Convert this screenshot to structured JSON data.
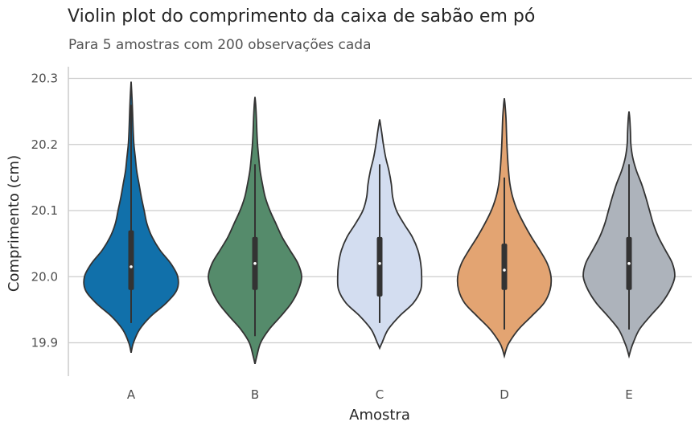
{
  "chart_data": {
    "type": "violin",
    "title": "Violin plot do comprimento da caixa de sabão em pó",
    "subtitle": "Para 5 amostras com 200 observações cada",
    "xlabel": "Amostra",
    "ylabel": "Comprimento (cm)",
    "ylim": [
      19.845,
      20.32
    ],
    "yticks": [
      "19.9",
      "20.0",
      "20.1",
      "20.2",
      "20.3"
    ],
    "grid": "horizontal",
    "categories": [
      "A",
      "B",
      "C",
      "D",
      "E"
    ],
    "series": [
      {
        "category": "A",
        "color": "#1170aa",
        "min": 19.885,
        "max": 20.295,
        "whisker_low": 19.93,
        "whisker_high": 20.26,
        "q1": 19.98,
        "median": 20.015,
        "q3": 20.07,
        "density": [
          [
            19.885,
            0.0
          ],
          [
            19.9,
            0.05
          ],
          [
            19.92,
            0.18
          ],
          [
            19.94,
            0.42
          ],
          [
            19.96,
            0.75
          ],
          [
            19.98,
            0.98
          ],
          [
            20.0,
            1.0
          ],
          [
            20.02,
            0.85
          ],
          [
            20.04,
            0.62
          ],
          [
            20.06,
            0.45
          ],
          [
            20.08,
            0.34
          ],
          [
            20.1,
            0.28
          ],
          [
            20.12,
            0.22
          ],
          [
            20.14,
            0.17
          ],
          [
            20.16,
            0.12
          ],
          [
            20.18,
            0.09
          ],
          [
            20.2,
            0.06
          ],
          [
            20.22,
            0.045
          ],
          [
            20.24,
            0.035
          ],
          [
            20.26,
            0.025
          ],
          [
            20.28,
            0.012
          ],
          [
            20.295,
            0.0
          ]
        ]
      },
      {
        "category": "B",
        "color": "#558b6b",
        "min": 19.868,
        "max": 20.272,
        "whisker_low": 19.91,
        "whisker_high": 20.17,
        "q1": 19.98,
        "median": 20.02,
        "q3": 20.06,
        "density": [
          [
            19.868,
            0.0
          ],
          [
            19.88,
            0.04
          ],
          [
            19.9,
            0.12
          ],
          [
            19.92,
            0.3
          ],
          [
            19.94,
            0.55
          ],
          [
            19.96,
            0.78
          ],
          [
            19.98,
            0.93
          ],
          [
            20.0,
            1.0
          ],
          [
            20.02,
            0.92
          ],
          [
            20.04,
            0.75
          ],
          [
            20.06,
            0.58
          ],
          [
            20.08,
            0.45
          ],
          [
            20.1,
            0.32
          ],
          [
            20.12,
            0.22
          ],
          [
            20.14,
            0.16
          ],
          [
            20.16,
            0.11
          ],
          [
            20.18,
            0.08
          ],
          [
            20.2,
            0.055
          ],
          [
            20.22,
            0.04
          ],
          [
            20.24,
            0.03
          ],
          [
            20.26,
            0.015
          ],
          [
            20.272,
            0.0
          ]
        ]
      },
      {
        "category": "C",
        "color": "#d3ddf0",
        "min": 19.892,
        "max": 20.238,
        "whisker_low": 19.93,
        "whisker_high": 20.17,
        "q1": 19.97,
        "median": 20.02,
        "q3": 20.06,
        "density": [
          [
            19.892,
            0.0
          ],
          [
            19.9,
            0.05
          ],
          [
            19.92,
            0.18
          ],
          [
            19.94,
            0.42
          ],
          [
            19.96,
            0.72
          ],
          [
            19.98,
            0.88
          ],
          [
            20.0,
            0.9
          ],
          [
            20.02,
            0.88
          ],
          [
            20.04,
            0.82
          ],
          [
            20.06,
            0.7
          ],
          [
            20.08,
            0.52
          ],
          [
            20.1,
            0.36
          ],
          [
            20.12,
            0.28
          ],
          [
            20.14,
            0.25
          ],
          [
            20.16,
            0.2
          ],
          [
            20.18,
            0.13
          ],
          [
            20.2,
            0.08
          ],
          [
            20.22,
            0.04
          ],
          [
            20.238,
            0.0
          ]
        ]
      },
      {
        "category": "D",
        "color": "#e3a472",
        "min": 19.88,
        "max": 20.27,
        "whisker_low": 19.92,
        "whisker_high": 20.15,
        "q1": 19.98,
        "median": 20.01,
        "q3": 20.05,
        "density": [
          [
            19.88,
            0.0
          ],
          [
            19.89,
            0.04
          ],
          [
            19.9,
            0.1
          ],
          [
            19.92,
            0.3
          ],
          [
            19.94,
            0.58
          ],
          [
            19.96,
            0.85
          ],
          [
            19.98,
            0.98
          ],
          [
            20.0,
            1.0
          ],
          [
            20.02,
            0.92
          ],
          [
            20.04,
            0.76
          ],
          [
            20.06,
            0.58
          ],
          [
            20.08,
            0.42
          ],
          [
            20.1,
            0.28
          ],
          [
            20.12,
            0.18
          ],
          [
            20.14,
            0.12
          ],
          [
            20.16,
            0.09
          ],
          [
            20.18,
            0.07
          ],
          [
            20.2,
            0.055
          ],
          [
            20.22,
            0.045
          ],
          [
            20.24,
            0.035
          ],
          [
            20.26,
            0.015
          ],
          [
            20.27,
            0.0
          ]
        ]
      },
      {
        "category": "E",
        "color": "#adb3bb",
        "min": 19.88,
        "max": 20.25,
        "whisker_low": 19.92,
        "whisker_high": 20.17,
        "q1": 19.98,
        "median": 20.02,
        "q3": 20.06,
        "density": [
          [
            19.88,
            0.0
          ],
          [
            19.89,
            0.04
          ],
          [
            19.9,
            0.09
          ],
          [
            19.92,
            0.22
          ],
          [
            19.94,
            0.45
          ],
          [
            19.96,
            0.7
          ],
          [
            19.98,
            0.88
          ],
          [
            20.0,
            0.98
          ],
          [
            20.02,
            0.93
          ],
          [
            20.04,
            0.78
          ],
          [
            20.06,
            0.63
          ],
          [
            20.08,
            0.52
          ],
          [
            20.1,
            0.44
          ],
          [
            20.12,
            0.36
          ],
          [
            20.14,
            0.27
          ],
          [
            20.16,
            0.16
          ],
          [
            20.18,
            0.08
          ],
          [
            20.2,
            0.04
          ],
          [
            20.22,
            0.03
          ],
          [
            20.24,
            0.015
          ],
          [
            20.25,
            0.0
          ]
        ]
      }
    ]
  }
}
